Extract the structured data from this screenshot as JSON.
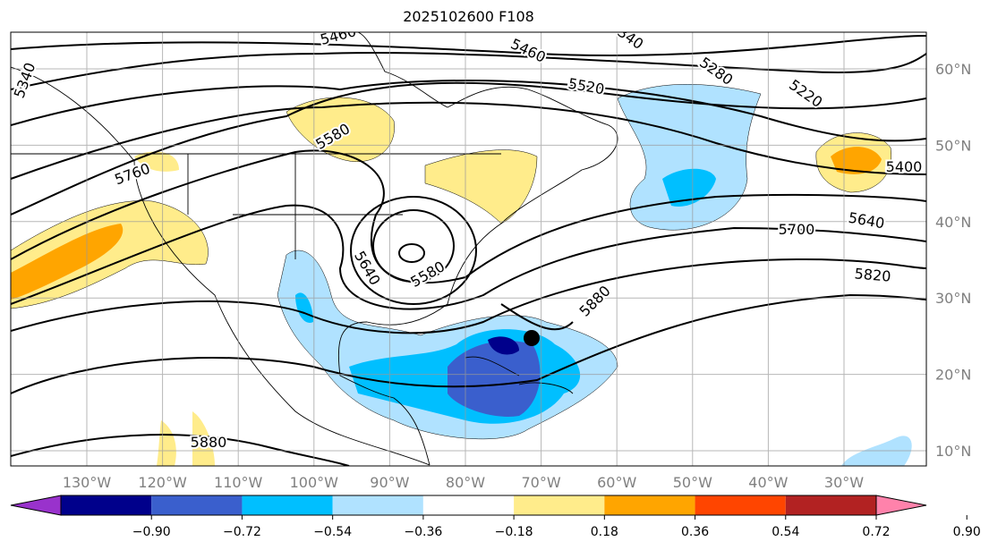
{
  "title": "2025102600 F108",
  "lon_labels": [
    "130°W",
    "120°W",
    "110°W",
    "100°W",
    "90°W",
    "80°W",
    "70°W",
    "60°W",
    "50°W",
    "40°W",
    "30°W"
  ],
  "lat_labels": [
    "60°N",
    "50°N",
    "40°N",
    "30°N",
    "20°N",
    "10°N"
  ],
  "contour_labels": [
    "5460",
    "5460",
    "5340",
    "5280",
    "5220",
    "5520",
    "5580",
    "5760",
    "5400",
    "5640",
    "5700",
    "5820",
    "5640",
    "5580",
    "5880",
    "5880",
    "5340"
  ],
  "colorbar": {
    "ticks": [
      "−0.90",
      "−0.72",
      "−0.54",
      "−0.36",
      "−0.18",
      "0.18",
      "0.36",
      "0.54",
      "0.72",
      "0.90"
    ],
    "colors": [
      "#9932cc",
      "#00008b",
      "#3a5fcd",
      "#00bfff",
      "#b0e2ff",
      "#ffffff",
      "#ffec8b",
      "#ffa500",
      "#ff4500",
      "#b22222",
      "#ff82ab"
    ]
  }
}
